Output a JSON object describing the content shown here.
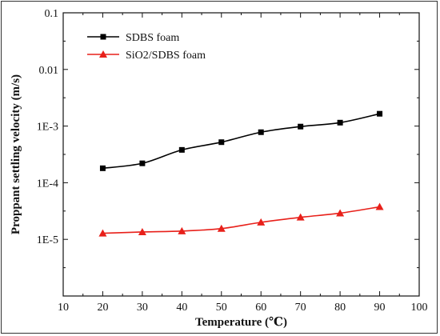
{
  "chart_data": {
    "type": "line",
    "title": "",
    "xlabel": "Temperature (℃)",
    "ylabel": "Proppant settling velocity (m/s)",
    "x": [
      20,
      30,
      40,
      50,
      60,
      70,
      80,
      90
    ],
    "xlim": [
      10,
      100
    ],
    "x_ticks": [
      10,
      20,
      30,
      40,
      50,
      60,
      70,
      80,
      90,
      100
    ],
    "x_tick_labels": [
      "10",
      "20",
      "30",
      "40",
      "50",
      "60",
      "70",
      "80",
      "90",
      "100"
    ],
    "yscale": "log",
    "ylim": [
      1e-06,
      0.1
    ],
    "y_ticks": [
      1e-05,
      0.0001,
      0.001,
      0.01,
      0.1
    ],
    "y_tick_labels": [
      "1E-5",
      "1E-4",
      "1E-3",
      "0.01",
      "0.1"
    ],
    "grid": false,
    "legend_position": "top-left",
    "series": [
      {
        "name": "SDBS foam",
        "color": "#000000",
        "marker": "square",
        "values": [
          0.00018,
          0.00022,
          0.00038,
          0.00052,
          0.00078,
          0.00098,
          0.00115,
          0.00165
        ]
      },
      {
        "name": "SiO2/SDBS foam",
        "color": "#e8201a",
        "marker": "triangle",
        "values": [
          1.28e-05,
          1.35e-05,
          1.4e-05,
          1.55e-05,
          2e-05,
          2.45e-05,
          2.9e-05,
          3.75e-05
        ]
      }
    ]
  }
}
